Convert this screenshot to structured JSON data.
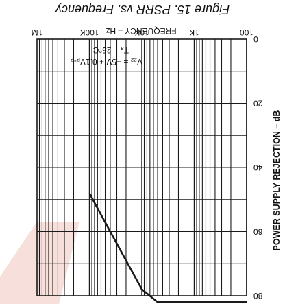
{
  "figure": {
    "caption": "Figure 15. PSRR vs. Frequency",
    "rotated_180": true
  },
  "chart_data": {
    "type": "line",
    "title": "Figure 15. PSRR vs. Frequency",
    "xlabel": "FREQUENCY – Hz",
    "ylabel": "POWER SUPPLY REJECTION – dB",
    "x_scale": "log",
    "xlim": [
      100,
      1000000
    ],
    "ylim": [
      0,
      80
    ],
    "x_ticks": [
      "100",
      "1K",
      "10K",
      "100K",
      "1M"
    ],
    "y_ticks": [
      "0",
      "20",
      "40",
      "60",
      "80"
    ],
    "grid": true,
    "annotation": {
      "line1": "V₂₂ = +5V + 0.1Vₚ-ₚ",
      "line2": "Tₐ = 25°C"
    },
    "series": [
      {
        "x": [
          100,
          200,
          500,
          1000,
          2000,
          5000,
          10000,
          20000,
          40000,
          80000,
          100000
        ],
        "y": [
          82,
          82,
          82,
          82,
          82,
          82,
          78,
          69,
          60,
          51,
          48
        ]
      }
    ],
    "colors": {
      "line": "#1a1a1a",
      "grid": "#1a1a1a",
      "text": "#111111",
      "watermark": "#f1c7bd"
    }
  }
}
